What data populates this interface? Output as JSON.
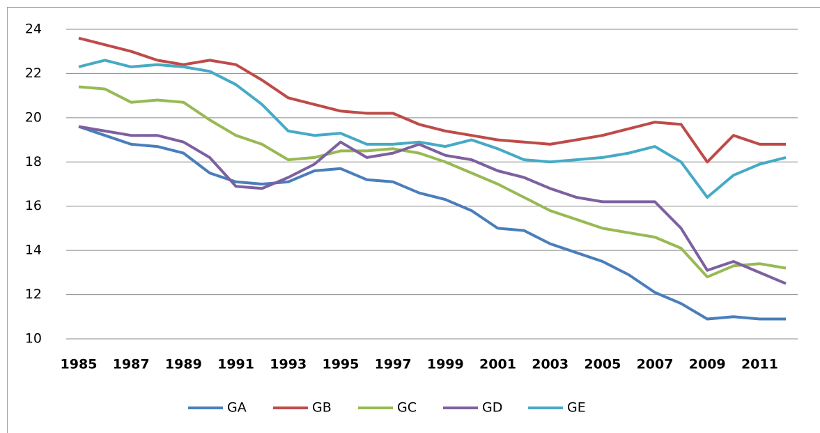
{
  "chart_data": {
    "type": "line",
    "categories": [
      "1985",
      null,
      "1987",
      null,
      "1989",
      null,
      "1991",
      null,
      "1993",
      null,
      "1995",
      null,
      "1997",
      null,
      "1999",
      null,
      "2001",
      null,
      "2003",
      null,
      "2005",
      null,
      "2007",
      null,
      "2009",
      null,
      "2011",
      null
    ],
    "series": [
      {
        "name": "GA",
        "color": "#4a7ebb",
        "values": [
          19.6,
          19.2,
          18.8,
          18.7,
          18.4,
          17.5,
          17.1,
          17.0,
          17.1,
          17.6,
          17.7,
          17.2,
          17.1,
          16.6,
          16.3,
          15.8,
          15.0,
          14.9,
          14.3,
          13.9,
          13.5,
          12.9,
          12.1,
          11.6,
          10.9,
          11.0,
          10.9,
          10.9
        ]
      },
      {
        "name": "GB",
        "color": "#be4b48",
        "values": [
          23.6,
          23.3,
          23.0,
          22.6,
          22.4,
          22.6,
          22.4,
          21.7,
          20.9,
          20.6,
          20.3,
          20.2,
          20.2,
          19.7,
          19.4,
          19.2,
          19.0,
          18.9,
          18.8,
          19.0,
          19.2,
          19.5,
          19.8,
          19.7,
          18.0,
          19.2,
          18.8,
          18.8
        ]
      },
      {
        "name": "GC",
        "color": "#98b954",
        "values": [
          21.4,
          21.3,
          20.7,
          20.8,
          20.7,
          19.9,
          19.2,
          18.8,
          18.1,
          18.2,
          18.5,
          18.5,
          18.6,
          18.4,
          18.0,
          17.5,
          17.0,
          16.4,
          15.8,
          15.4,
          15.0,
          14.8,
          14.6,
          14.1,
          12.8,
          13.3,
          13.4,
          13.2
        ]
      },
      {
        "name": "GD",
        "color": "#7d60a0",
        "values": [
          19.6,
          19.4,
          19.2,
          19.2,
          18.9,
          18.2,
          16.9,
          16.8,
          17.3,
          17.9,
          18.9,
          18.2,
          18.4,
          18.8,
          18.3,
          18.1,
          17.6,
          17.3,
          16.8,
          16.4,
          16.2,
          16.2,
          16.2,
          15.0,
          13.1,
          13.5,
          13.0,
          12.5
        ]
      },
      {
        "name": "GE",
        "color": "#46aac5",
        "values": [
          22.3,
          22.6,
          22.3,
          22.4,
          22.3,
          22.1,
          21.5,
          20.6,
          19.4,
          19.2,
          19.3,
          18.8,
          18.8,
          18.9,
          18.7,
          19.0,
          18.6,
          18.1,
          18.0,
          18.1,
          18.2,
          18.4,
          18.7,
          18.0,
          16.4,
          17.4,
          17.9,
          18.2
        ]
      }
    ],
    "ylim": [
      10,
      24
    ],
    "yticks": [
      10,
      12,
      14,
      16,
      18,
      20,
      22,
      24
    ],
    "grid": true,
    "legend": "bottom"
  }
}
